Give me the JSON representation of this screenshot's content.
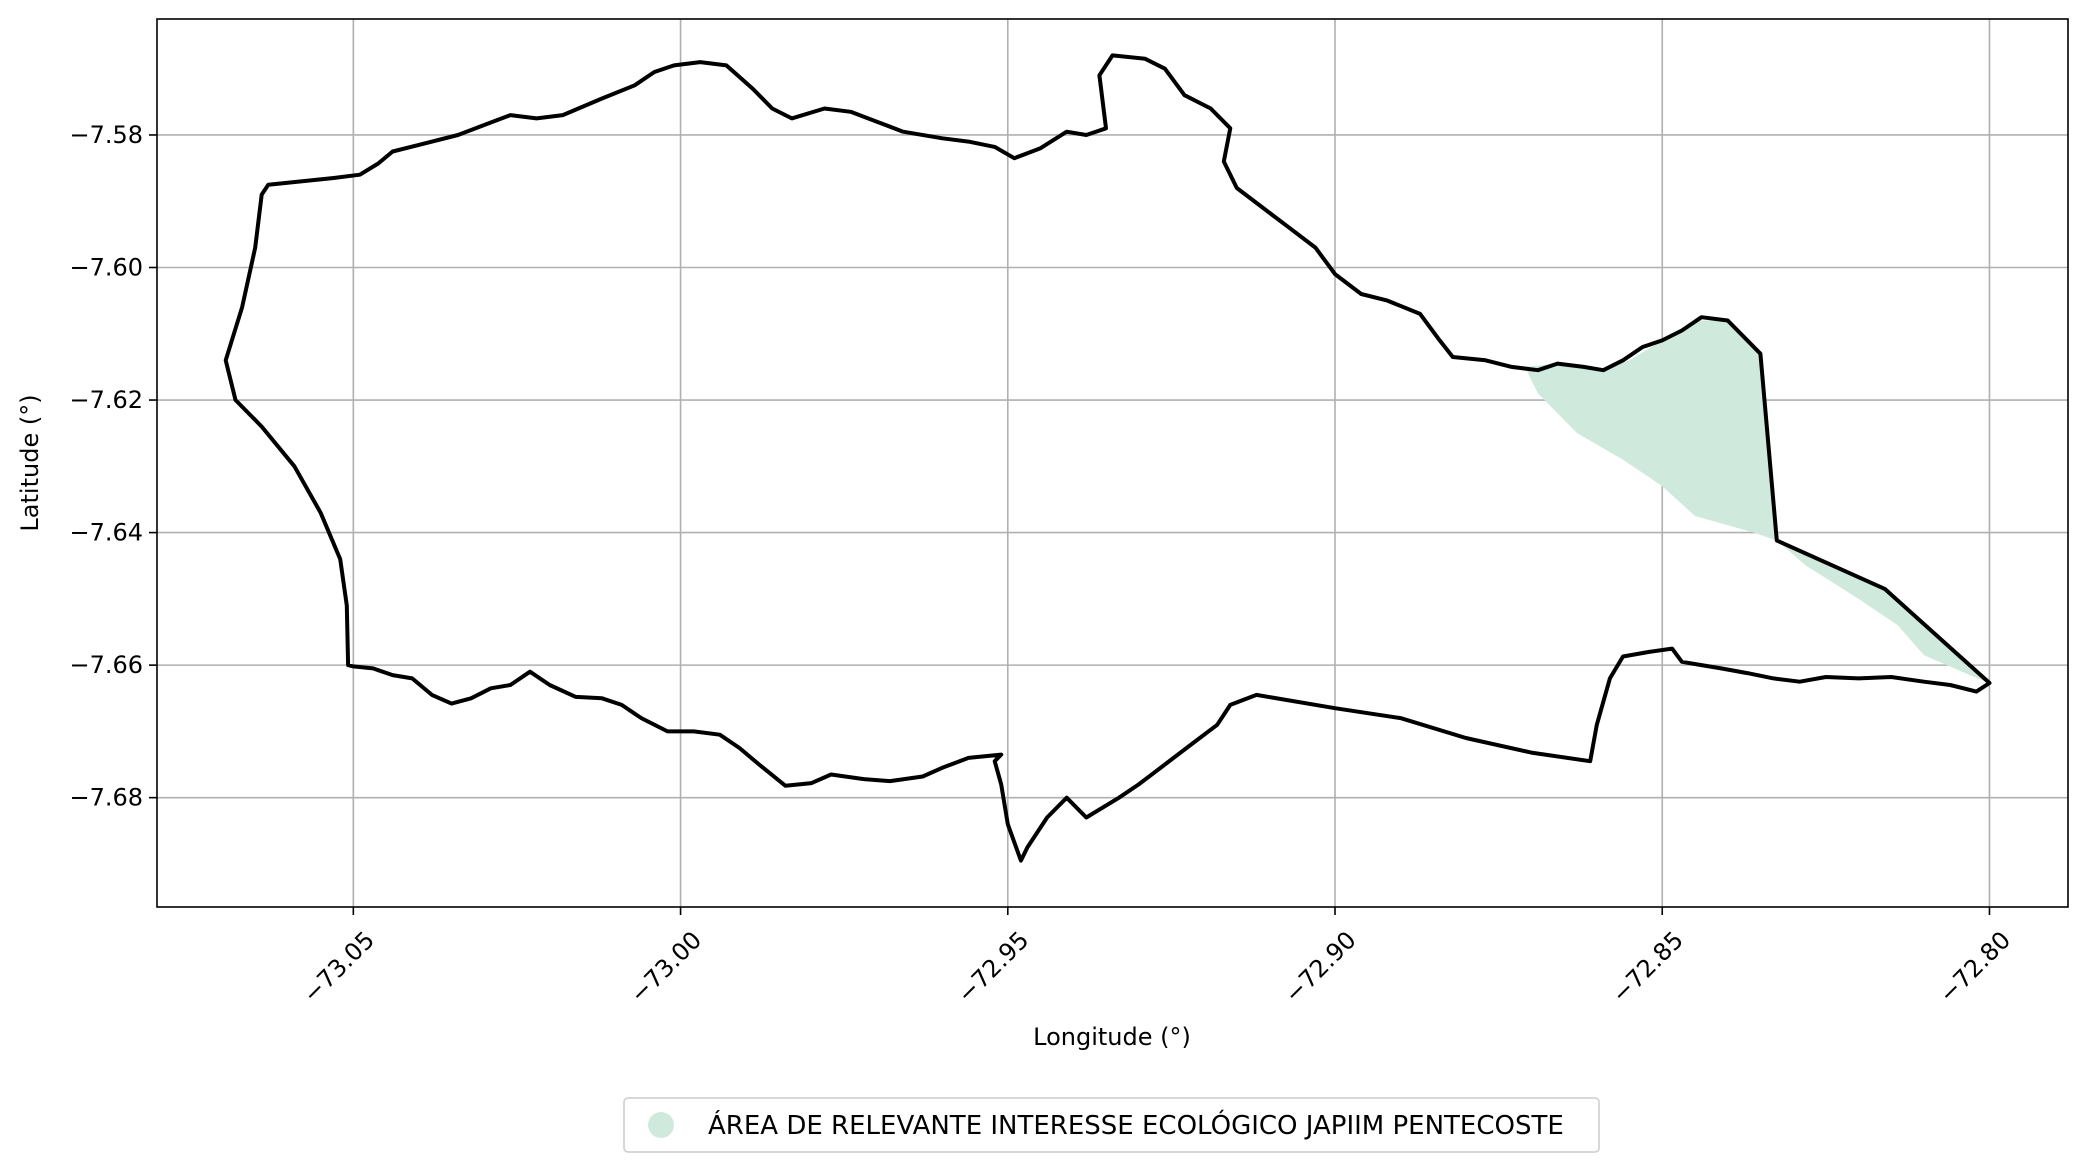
{
  "chart_data": {
    "type": "map",
    "xlabel": "Longitude (°)",
    "ylabel": "Latitude (°)",
    "xlim": [
      -73.08,
      -72.788
    ],
    "ylim": [
      -7.6965,
      -7.5625
    ],
    "grid": true,
    "xticks": [
      -73.05,
      -73.0,
      -72.95,
      -72.9,
      -72.85,
      -72.8
    ],
    "xtick_labels": [
      "−73.05",
      "−73.00",
      "−72.95",
      "−72.90",
      "−72.85",
      "−72.80"
    ],
    "yticks": [
      -7.58,
      -7.6,
      -7.62,
      -7.64,
      -7.66,
      -7.68
    ],
    "ytick_labels": [
      "−7.58",
      "−7.60",
      "−7.62",
      "−7.64",
      "−7.66",
      "−7.68"
    ],
    "legend": {
      "placement": "bottom-center",
      "entries": [
        {
          "label": "ÁREA DE RELEVANTE INTERESSE ECOLÓGICO JAPIIM PENTECOSTE",
          "color": "#cfeadc"
        }
      ]
    },
    "outline_color": "#000000",
    "outline": [
      [
        -73.0462,
        -7.5843
      ],
      [
        -73.044,
        -7.5825
      ],
      [
        -73.04,
        -7.5815
      ],
      [
        -73.034,
        -7.58
      ],
      [
        -73.03,
        -7.5785
      ],
      [
        -73.026,
        -7.577
      ],
      [
        -73.022,
        -7.5775
      ],
      [
        -73.018,
        -7.577
      ],
      [
        -73.012,
        -7.5745
      ],
      [
        -73.007,
        -7.5725
      ],
      [
        -73.004,
        -7.5705
      ],
      [
        -73.001,
        -7.5695
      ],
      [
        -72.997,
        -7.569
      ],
      [
        -72.993,
        -7.5695
      ],
      [
        -72.989,
        -7.573
      ],
      [
        -72.986,
        -7.576
      ],
      [
        -72.983,
        -7.5775
      ],
      [
        -72.978,
        -7.576
      ],
      [
        -72.974,
        -7.5765
      ],
      [
        -72.97,
        -7.578
      ],
      [
        -72.966,
        -7.5795
      ],
      [
        -72.96,
        -7.5805
      ],
      [
        -72.956,
        -7.581
      ],
      [
        -72.952,
        -7.5818
      ],
      [
        -72.949,
        -7.5835
      ],
      [
        -72.945,
        -7.582
      ],
      [
        -72.941,
        -7.5795
      ],
      [
        -72.938,
        -7.58
      ],
      [
        -72.935,
        -7.579
      ],
      [
        -72.936,
        -7.571
      ],
      [
        -72.934,
        -7.568
      ],
      [
        -72.929,
        -7.5685
      ],
      [
        -72.926,
        -7.57
      ],
      [
        -72.923,
        -7.574
      ],
      [
        -72.919,
        -7.576
      ],
      [
        -72.916,
        -7.579
      ],
      [
        -72.917,
        -7.584
      ],
      [
        -72.915,
        -7.588
      ],
      [
        -72.911,
        -7.591
      ],
      [
        -72.907,
        -7.594
      ],
      [
        -72.903,
        -7.597
      ],
      [
        -72.9,
        -7.601
      ],
      [
        -72.896,
        -7.604
      ],
      [
        -72.892,
        -7.605
      ],
      [
        -72.887,
        -7.607
      ],
      [
        -72.884,
        -7.611
      ],
      [
        -72.882,
        -7.6135
      ],
      [
        -72.877,
        -7.614
      ],
      [
        -72.873,
        -7.615
      ],
      [
        -72.869,
        -7.6155
      ],
      [
        -72.866,
        -7.6145
      ],
      [
        -72.862,
        -7.615
      ],
      [
        -72.859,
        -7.6155
      ],
      [
        -72.856,
        -7.614
      ],
      [
        -72.853,
        -7.612
      ],
      [
        -72.85,
        -7.611
      ],
      [
        -72.847,
        -7.6095
      ],
      [
        -72.844,
        -7.6075
      ],
      [
        -72.84,
        -7.608
      ],
      [
        -72.835,
        -7.613
      ],
      [
        -72.8325,
        -7.6412
      ],
      [
        -72.816,
        -7.6485
      ],
      [
        -72.8,
        -7.6627
      ],
      [
        -72.802,
        -7.664
      ],
      [
        -72.806,
        -7.663
      ],
      [
        -72.81,
        -7.6625
      ],
      [
        -72.815,
        -7.6618
      ],
      [
        -72.82,
        -7.662
      ],
      [
        -72.825,
        -7.6618
      ],
      [
        -72.829,
        -7.6625
      ],
      [
        -72.833,
        -7.662
      ],
      [
        -72.837,
        -7.6612
      ],
      [
        -72.841,
        -7.6605
      ],
      [
        -72.844,
        -7.66
      ],
      [
        -72.847,
        -7.6595
      ],
      [
        -72.8485,
        -7.6575
      ],
      [
        -72.852,
        -7.658
      ],
      [
        -72.856,
        -7.6587
      ],
      [
        -72.858,
        -7.662
      ],
      [
        -72.86,
        -7.669
      ],
      [
        -72.861,
        -7.6745
      ],
      [
        -72.87,
        -7.6732
      ],
      [
        -72.88,
        -7.671
      ],
      [
        -72.89,
        -7.668
      ],
      [
        -72.9,
        -7.6665
      ],
      [
        -72.912,
        -7.6645
      ],
      [
        -72.916,
        -7.666
      ],
      [
        -72.918,
        -7.669
      ],
      [
        -72.922,
        -7.672
      ],
      [
        -72.926,
        -7.675
      ],
      [
        -72.93,
        -7.678
      ],
      [
        -72.933,
        -7.68
      ],
      [
        -72.938,
        -7.683
      ],
      [
        -72.941,
        -7.68
      ],
      [
        -72.944,
        -7.683
      ],
      [
        -72.947,
        -7.6875
      ],
      [
        -72.948,
        -7.6895
      ],
      [
        -72.95,
        -7.684
      ],
      [
        -72.951,
        -7.678
      ],
      [
        -72.952,
        -7.6745
      ],
      [
        -72.951,
        -7.6735
      ],
      [
        -72.956,
        -7.674
      ],
      [
        -72.96,
        -7.6755
      ],
      [
        -72.963,
        -7.6768
      ],
      [
        -72.968,
        -7.6775
      ],
      [
        -72.972,
        -7.6772
      ],
      [
        -72.977,
        -7.6765
      ],
      [
        -72.98,
        -7.6778
      ],
      [
        -72.984,
        -7.6782
      ],
      [
        -72.988,
        -7.675
      ],
      [
        -72.991,
        -7.6725
      ],
      [
        -72.994,
        -7.6705
      ],
      [
        -72.998,
        -7.67
      ],
      [
        -73.002,
        -7.67
      ],
      [
        -73.006,
        -7.668
      ],
      [
        -73.009,
        -7.666
      ],
      [
        -73.012,
        -7.665
      ],
      [
        -73.016,
        -7.6648
      ],
      [
        -73.02,
        -7.663
      ],
      [
        -73.023,
        -7.661
      ],
      [
        -73.026,
        -7.663
      ],
      [
        -73.029,
        -7.6635
      ],
      [
        -73.032,
        -7.665
      ],
      [
        -73.035,
        -7.6658
      ],
      [
        -73.038,
        -7.6645
      ],
      [
        -73.041,
        -7.662
      ],
      [
        -73.044,
        -7.6615
      ],
      [
        -73.047,
        -7.6605
      ],
      [
        -73.05,
        -7.6602
      ],
      [
        -73.0508,
        -7.66
      ],
      [
        -73.051,
        -7.651
      ],
      [
        -73.052,
        -7.644
      ],
      [
        -73.055,
        -7.637
      ],
      [
        -73.059,
        -7.63
      ],
      [
        -73.064,
        -7.624
      ],
      [
        -73.068,
        -7.62
      ],
      [
        -73.0695,
        -7.614
      ],
      [
        -73.067,
        -7.606
      ],
      [
        -73.065,
        -7.597
      ],
      [
        -73.064,
        -7.589
      ],
      [
        -73.063,
        -7.5875
      ],
      [
        -73.058,
        -7.587
      ],
      [
        -73.053,
        -7.5865
      ],
      [
        -73.049,
        -7.586
      ]
    ],
    "region": [
      [
        -72.871,
        -7.615
      ],
      [
        -72.866,
        -7.6145
      ],
      [
        -72.86,
        -7.6155
      ],
      [
        -72.855,
        -7.614
      ],
      [
        -72.85,
        -7.611
      ],
      [
        -72.845,
        -7.608
      ],
      [
        -72.84,
        -7.608
      ],
      [
        -72.835,
        -7.613
      ],
      [
        -72.8325,
        -7.6412
      ],
      [
        -72.816,
        -7.6485
      ],
      [
        -72.8,
        -7.6627
      ],
      [
        -72.803,
        -7.6615
      ],
      [
        -72.81,
        -7.6585
      ],
      [
        -72.814,
        -7.654
      ],
      [
        -72.82,
        -7.65
      ],
      [
        -72.828,
        -7.645
      ],
      [
        -72.8325,
        -7.6412
      ],
      [
        -72.836,
        -7.64
      ],
      [
        -72.845,
        -7.6375
      ],
      [
        -72.85,
        -7.633
      ],
      [
        -72.856,
        -7.629
      ],
      [
        -72.863,
        -7.625
      ],
      [
        -72.869,
        -7.619
      ]
    ]
  }
}
